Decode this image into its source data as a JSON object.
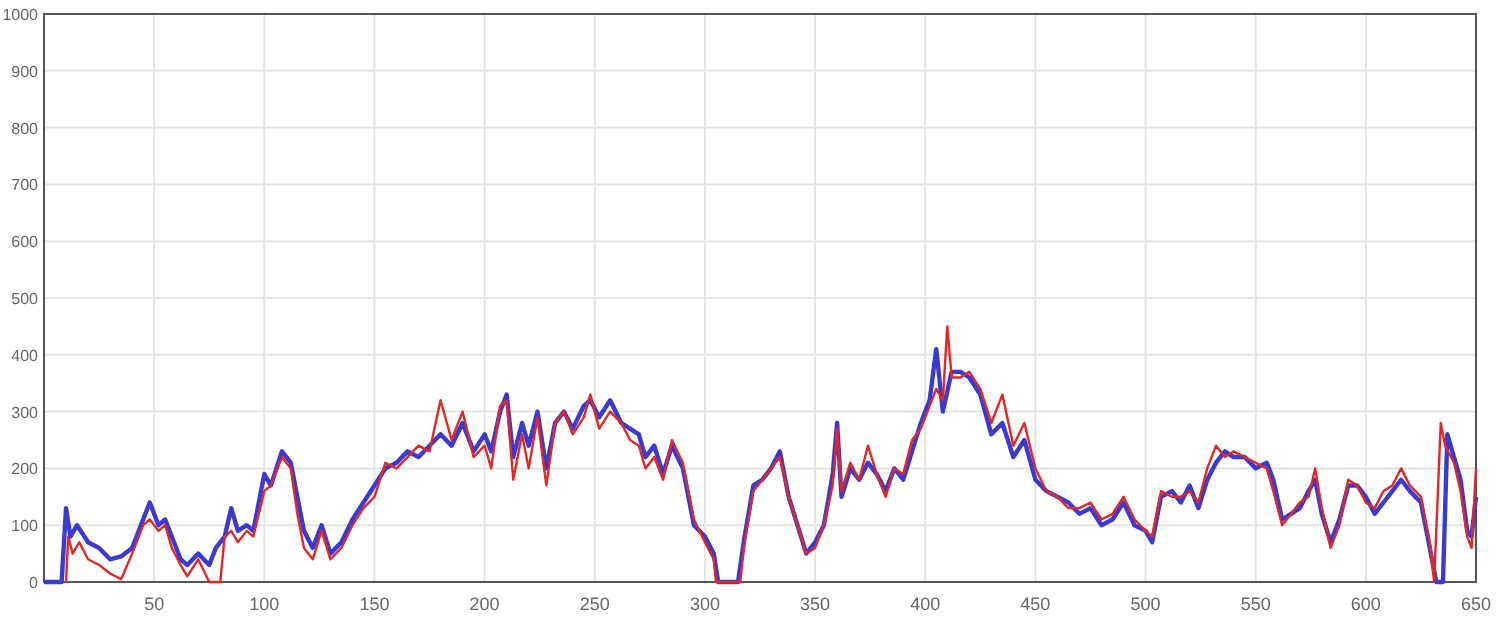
{
  "chart_data": {
    "type": "line",
    "xlim": [
      0,
      650
    ],
    "xticks": [
      50,
      100,
      150,
      200,
      250,
      300,
      350,
      400,
      450,
      500,
      550,
      600,
      650
    ],
    "ylim": [
      0,
      1000
    ],
    "yticks": [
      0,
      100,
      200,
      300,
      400,
      500,
      600,
      700,
      800,
      900,
      1000
    ],
    "grid": true,
    "legend": false,
    "marker": "none",
    "line_style": "solid",
    "series": [
      {
        "color": "#3a3ad0",
        "x": [
          0,
          8,
          10,
          12,
          15,
          20,
          25,
          30,
          35,
          40,
          45,
          48,
          52,
          55,
          58,
          62,
          65,
          70,
          75,
          78,
          82,
          85,
          88,
          92,
          95,
          100,
          103,
          108,
          112,
          115,
          118,
          122,
          126,
          130,
          135,
          140,
          145,
          150,
          155,
          160,
          165,
          170,
          175,
          180,
          185,
          190,
          195,
          200,
          203,
          207,
          210,
          213,
          217,
          220,
          224,
          228,
          232,
          236,
          240,
          245,
          248,
          252,
          257,
          262,
          266,
          270,
          273,
          277,
          281,
          285,
          290,
          295,
          300,
          304,
          306,
          315,
          318,
          322,
          326,
          330,
          334,
          338,
          342,
          346,
          350,
          354,
          358,
          360,
          362,
          366,
          370,
          374,
          378,
          382,
          386,
          390,
          394,
          398,
          402,
          405,
          408,
          412,
          416,
          420,
          425,
          430,
          435,
          440,
          445,
          450,
          455,
          460,
          465,
          470,
          475,
          480,
          485,
          490,
          495,
          500,
          503,
          507,
          512,
          516,
          520,
          524,
          528,
          532,
          536,
          540,
          545,
          550,
          555,
          558,
          562,
          566,
          570,
          574,
          577,
          580,
          584,
          588,
          592,
          596,
          600,
          604,
          608,
          612,
          616,
          620,
          625,
          629,
          632,
          635,
          637,
          640,
          643,
          646,
          648,
          650
        ],
        "values": [
          0,
          0,
          130,
          80,
          100,
          70,
          60,
          40,
          45,
          60,
          110,
          140,
          100,
          110,
          80,
          40,
          30,
          50,
          30,
          60,
          80,
          130,
          90,
          100,
          90,
          190,
          170,
          230,
          210,
          150,
          90,
          60,
          100,
          50,
          70,
          110,
          140,
          170,
          200,
          210,
          230,
          220,
          240,
          260,
          240,
          280,
          230,
          260,
          230,
          300,
          330,
          220,
          280,
          240,
          300,
          200,
          280,
          300,
          270,
          310,
          320,
          290,
          320,
          280,
          270,
          260,
          220,
          240,
          190,
          240,
          200,
          100,
          80,
          50,
          0,
          0,
          80,
          170,
          180,
          200,
          230,
          150,
          100,
          50,
          70,
          100,
          190,
          280,
          150,
          200,
          180,
          210,
          190,
          160,
          200,
          180,
          230,
          280,
          320,
          410,
          300,
          370,
          370,
          360,
          330,
          260,
          280,
          220,
          250,
          180,
          160,
          150,
          140,
          120,
          130,
          100,
          110,
          140,
          100,
          90,
          70,
          150,
          160,
          140,
          170,
          130,
          180,
          210,
          230,
          220,
          220,
          200,
          210,
          180,
          110,
          120,
          130,
          160,
          180,
          120,
          70,
          110,
          170,
          170,
          150,
          120,
          140,
          160,
          180,
          160,
          140,
          60,
          0,
          0,
          260,
          220,
          180,
          90,
          80,
          150
        ]
      },
      {
        "color": "#e02828",
        "x": [
          10,
          11,
          13,
          16,
          20,
          25,
          30,
          35,
          40,
          45,
          48,
          52,
          55,
          58,
          62,
          65,
          70,
          75,
          80,
          82,
          85,
          88,
          92,
          95,
          100,
          103,
          108,
          112,
          115,
          118,
          122,
          126,
          130,
          135,
          140,
          145,
          150,
          155,
          160,
          165,
          170,
          175,
          180,
          185,
          190,
          195,
          200,
          203,
          207,
          210,
          213,
          217,
          220,
          224,
          228,
          232,
          236,
          240,
          245,
          248,
          252,
          257,
          262,
          266,
          270,
          273,
          277,
          281,
          285,
          290,
          295,
          300,
          304,
          305,
          316,
          318,
          322,
          326,
          330,
          334,
          338,
          342,
          346,
          350,
          354,
          358,
          360,
          362,
          366,
          370,
          374,
          378,
          382,
          386,
          390,
          394,
          398,
          402,
          405,
          408,
          410,
          412,
          416,
          420,
          425,
          430,
          435,
          440,
          445,
          450,
          455,
          460,
          465,
          470,
          475,
          480,
          485,
          490,
          495,
          500,
          503,
          507,
          512,
          516,
          520,
          524,
          528,
          532,
          536,
          540,
          545,
          550,
          555,
          558,
          562,
          566,
          570,
          574,
          577,
          580,
          584,
          588,
          592,
          596,
          600,
          604,
          608,
          612,
          616,
          620,
          625,
          629,
          631,
          634,
          636,
          640,
          643,
          646,
          648,
          650
        ],
        "values": [
          0,
          80,
          50,
          70,
          40,
          30,
          15,
          5,
          50,
          100,
          110,
          90,
          100,
          60,
          30,
          10,
          40,
          0,
          0,
          80,
          90,
          70,
          90,
          80,
          160,
          170,
          220,
          200,
          120,
          60,
          40,
          90,
          40,
          60,
          100,
          130,
          150,
          210,
          200,
          220,
          240,
          230,
          320,
          250,
          300,
          220,
          240,
          200,
          310,
          320,
          180,
          260,
          200,
          290,
          170,
          280,
          300,
          260,
          290,
          330,
          270,
          300,
          280,
          250,
          240,
          200,
          220,
          180,
          250,
          210,
          110,
          70,
          40,
          0,
          0,
          70,
          160,
          180,
          200,
          220,
          150,
          100,
          50,
          60,
          100,
          170,
          270,
          160,
          210,
          180,
          240,
          190,
          150,
          200,
          190,
          250,
          270,
          310,
          340,
          320,
          450,
          360,
          360,
          370,
          340,
          280,
          330,
          240,
          280,
          200,
          160,
          150,
          130,
          130,
          140,
          110,
          120,
          150,
          110,
          90,
          80,
          160,
          150,
          150,
          160,
          140,
          200,
          240,
          220,
          230,
          220,
          210,
          200,
          160,
          100,
          120,
          140,
          150,
          200,
          130,
          60,
          100,
          180,
          170,
          140,
          130,
          160,
          170,
          200,
          170,
          150,
          70,
          0,
          280,
          240,
          210,
          160,
          80,
          60,
          200
        ]
      }
    ]
  }
}
